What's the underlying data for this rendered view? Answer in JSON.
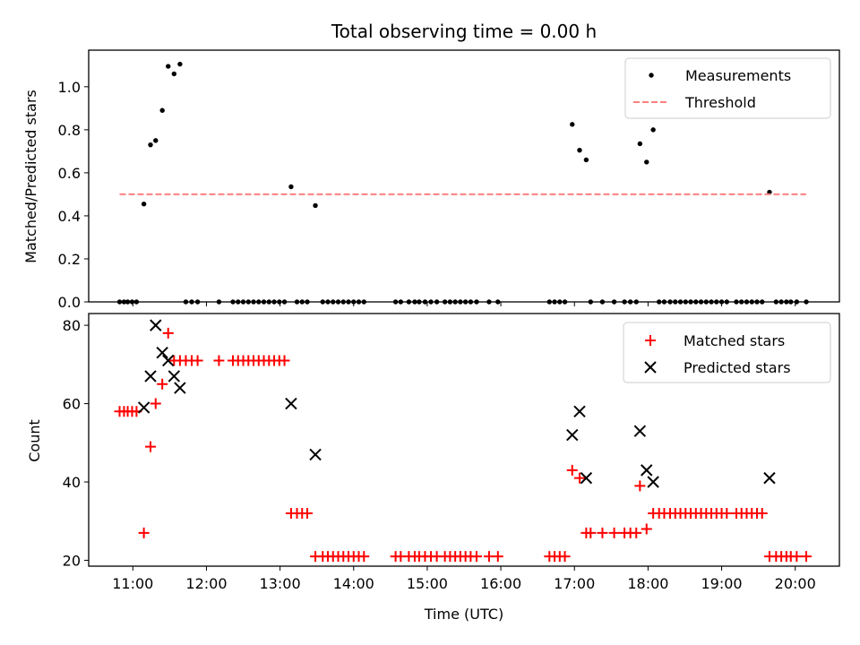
{
  "colors": {
    "matched": "#ff0000",
    "predicted": "#000000",
    "threshold": "#ff8080",
    "measurement": "#000000"
  },
  "chart_data": [
    {
      "type": "scatter",
      "title": "Total observing time = 0.00 h",
      "xlabel": "",
      "ylabel": "Matched/Predicted stars",
      "xlim": [
        10.4,
        20.6
      ],
      "ylim": [
        0,
        1.17
      ],
      "yticks": [
        0.0,
        0.2,
        0.4,
        0.6,
        0.8,
        1.0
      ],
      "ytick_labels": [
        "0.0",
        "0.2",
        "0.4",
        "0.6",
        "0.8",
        "1.0"
      ],
      "legend_position": "top-right",
      "series": [
        {
          "name": "Measurements",
          "marker": "dot",
          "x": [
            10.82,
            10.88,
            10.93,
            10.99,
            11.05,
            11.15,
            11.24,
            11.31,
            11.4,
            11.48,
            11.56,
            11.64,
            11.72,
            11.8,
            11.88,
            12.17,
            12.36,
            12.43,
            12.5,
            12.57,
            12.64,
            12.71,
            12.78,
            12.85,
            12.92,
            12.99,
            13.06,
            13.15,
            13.23,
            13.3,
            13.37,
            13.48,
            13.58,
            13.65,
            13.72,
            13.79,
            13.86,
            13.93,
            14.0,
            14.07,
            14.14,
            14.57,
            14.64,
            14.75,
            14.83,
            14.89,
            14.97,
            15.05,
            15.13,
            15.24,
            15.31,
            15.38,
            15.45,
            15.52,
            15.59,
            15.67,
            15.84,
            15.96,
            16.66,
            16.73,
            16.8,
            16.87,
            16.97,
            17.07,
            17.16,
            17.22,
            17.38,
            17.54,
            17.68,
            17.76,
            17.84,
            17.89,
            17.98,
            18.07,
            18.15,
            18.22,
            18.3,
            18.37,
            18.44,
            18.51,
            18.58,
            18.65,
            18.72,
            18.79,
            18.86,
            18.93,
            19.0,
            19.07,
            19.2,
            19.27,
            19.34,
            19.41,
            19.48,
            19.55,
            19.65,
            19.74,
            19.81,
            19.88,
            19.94,
            20.02,
            20.15
          ],
          "y": [
            0,
            0,
            0,
            0,
            0,
            0.455,
            0.73,
            0.75,
            0.89,
            1.095,
            1.06,
            1.105,
            0,
            0,
            0,
            0,
            0,
            0,
            0,
            0,
            0,
            0,
            0,
            0,
            0,
            0,
            0,
            0.535,
            0,
            0,
            0,
            0.448,
            0,
            0,
            0,
            0,
            0,
            0,
            0,
            0,
            0,
            0,
            0,
            0,
            0,
            0,
            0,
            0,
            0,
            0,
            0,
            0,
            0,
            0,
            0,
            0,
            0,
            0,
            0,
            0,
            0,
            0,
            0.825,
            0.705,
            0.66,
            0,
            0,
            0,
            0,
            0,
            0,
            0.735,
            0.65,
            0.8,
            0,
            0,
            0,
            0,
            0,
            0,
            0,
            0,
            0,
            0,
            0,
            0,
            0,
            0,
            0,
            0,
            0,
            0,
            0,
            0,
            0.51,
            0,
            0,
            0,
            0,
            0,
            0
          ]
        },
        {
          "name": "Threshold",
          "marker": "dashed-line",
          "x": [
            10.82,
            20.15
          ],
          "y": [
            0.5,
            0.5
          ]
        }
      ]
    },
    {
      "type": "scatter",
      "title": "",
      "xlabel": "Time (UTC)",
      "ylabel": "Count",
      "xlim": [
        10.4,
        20.6
      ],
      "ylim": [
        18.5,
        83
      ],
      "xticks": [
        11,
        12,
        13,
        14,
        15,
        16,
        17,
        18,
        19,
        20
      ],
      "xtick_labels": [
        "11:00",
        "12:00",
        "13:00",
        "14:00",
        "15:00",
        "16:00",
        "17:00",
        "18:00",
        "19:00",
        "20:00"
      ],
      "yticks": [
        20,
        40,
        60,
        80
      ],
      "ytick_labels": [
        "20",
        "40",
        "60",
        "80"
      ],
      "legend_position": "top-right",
      "series": [
        {
          "name": "Matched stars",
          "marker": "plus",
          "x": [
            10.82,
            10.88,
            10.93,
            10.99,
            11.05,
            11.15,
            11.24,
            11.31,
            11.4,
            11.48,
            11.56,
            11.64,
            11.72,
            11.8,
            11.88,
            12.17,
            12.36,
            12.43,
            12.5,
            12.57,
            12.64,
            12.71,
            12.78,
            12.85,
            12.92,
            12.99,
            13.06,
            13.15,
            13.23,
            13.3,
            13.37,
            13.48,
            13.58,
            13.65,
            13.72,
            13.79,
            13.86,
            13.93,
            14.0,
            14.07,
            14.14,
            14.57,
            14.64,
            14.75,
            14.83,
            14.89,
            14.97,
            15.05,
            15.13,
            15.24,
            15.31,
            15.38,
            15.45,
            15.52,
            15.59,
            15.67,
            15.84,
            15.96,
            16.66,
            16.73,
            16.8,
            16.87,
            16.97,
            17.07,
            17.16,
            17.22,
            17.38,
            17.54,
            17.68,
            17.76,
            17.84,
            17.89,
            17.98,
            18.07,
            18.15,
            18.22,
            18.3,
            18.37,
            18.44,
            18.51,
            18.58,
            18.65,
            18.72,
            18.79,
            18.86,
            18.93,
            19.0,
            19.07,
            19.2,
            19.27,
            19.34,
            19.41,
            19.48,
            19.55,
            19.65,
            19.74,
            19.81,
            19.88,
            19.94,
            20.02,
            20.15
          ],
          "y": [
            58,
            58,
            58,
            58,
            58,
            27,
            49,
            60,
            65,
            78,
            71,
            71,
            71,
            71,
            71,
            71,
            71,
            71,
            71,
            71,
            71,
            71,
            71,
            71,
            71,
            71,
            71,
            32,
            32,
            32,
            32,
            21,
            21,
            21,
            21,
            21,
            21,
            21,
            21,
            21,
            21,
            21,
            21,
            21,
            21,
            21,
            21,
            21,
            21,
            21,
            21,
            21,
            21,
            21,
            21,
            21,
            21,
            21,
            21,
            21,
            21,
            21,
            43,
            41,
            27,
            27,
            27,
            27,
            27,
            27,
            27,
            39,
            28,
            32,
            32,
            32,
            32,
            32,
            32,
            32,
            32,
            32,
            32,
            32,
            32,
            32,
            32,
            32,
            32,
            32,
            32,
            32,
            32,
            32,
            21,
            21,
            21,
            21,
            21,
            21,
            21
          ]
        },
        {
          "name": "Predicted stars",
          "marker": "cross",
          "x": [
            11.15,
            11.24,
            11.31,
            11.4,
            11.48,
            11.56,
            11.64,
            13.15,
            13.48,
            16.97,
            17.07,
            17.16,
            17.89,
            17.98,
            18.07,
            19.65
          ],
          "y": [
            59,
            67,
            80,
            73,
            71,
            67,
            64,
            60,
            47,
            52,
            58,
            41,
            53,
            43,
            40,
            41
          ]
        }
      ]
    }
  ]
}
